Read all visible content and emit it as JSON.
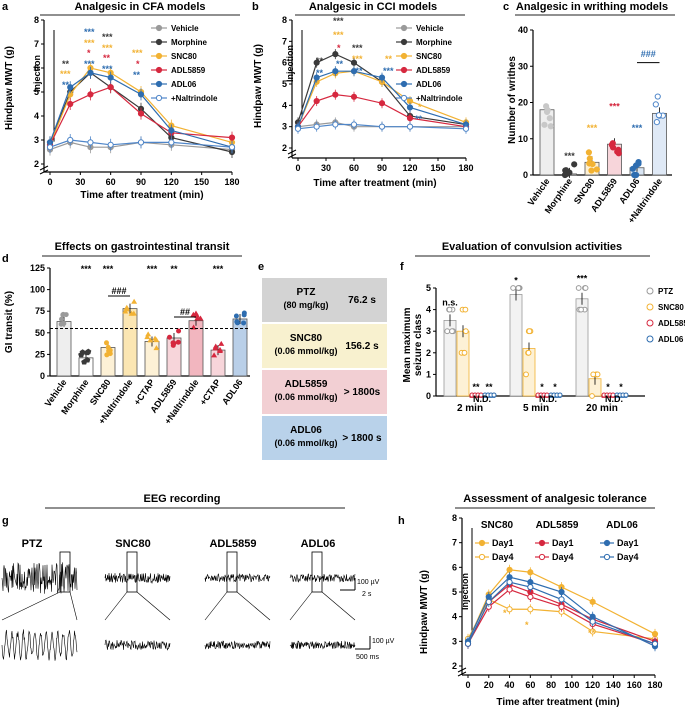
{
  "panels": {
    "a": {
      "letter": "a",
      "title": "Analgesic in CFA models",
      "ylabel": "Hindpaw MWT (g)",
      "xlabel": "Time after treatment (min)",
      "yticks": [
        "2",
        "3",
        "4",
        "5",
        "6",
        "7",
        "8"
      ],
      "xticks": [
        "0",
        "30",
        "60",
        "90",
        "120",
        "150",
        "180"
      ],
      "injection": "Injection",
      "legend": [
        "Vehicle",
        "Morphine",
        "SNC80",
        "ADL5859",
        "ADL06",
        "+Naltrindole"
      ]
    },
    "b": {
      "letter": "b",
      "title": "Analgesic in CCI models",
      "ylabel": "Hindpaw MWT (g)",
      "xlabel": "Time after treatment (min)",
      "yticks": [
        "2",
        "3",
        "4",
        "5",
        "6",
        "7",
        "8"
      ],
      "xticks": [
        "0",
        "30",
        "60",
        "90",
        "120",
        "150",
        "180"
      ],
      "injection": "Injection",
      "legend": [
        "Vehicle",
        "Morphine",
        "SNC80",
        "ADL5859",
        "ADL06",
        "+Naltrindole"
      ]
    },
    "c": {
      "letter": "c",
      "title": "Analgesic in writhing models",
      "ylabel": "Number of writhes",
      "yticks": [
        "0",
        "10",
        "20",
        "30",
        "40"
      ],
      "categories": [
        "Vehicle",
        "Morphine",
        "SNC80",
        "ADL5859",
        "ADL06",
        "+Naltrindole"
      ],
      "sig": [
        "***",
        "***",
        "***",
        "***",
        "###"
      ]
    },
    "d": {
      "letter": "d",
      "title": "Effects on gastrointestinal transit",
      "ylabel": "GI transit (%)",
      "yticks": [
        "0",
        "25",
        "50",
        "75",
        "100",
        "125"
      ],
      "categories": [
        "Vehicle",
        "Morphine",
        "SNC80",
        "+Naltrindole",
        "+CTAP",
        "ADL5859",
        "+Naltrindole",
        "+CTAP",
        "ADL06"
      ],
      "sig": [
        "***",
        "***",
        "***",
        "**",
        "***",
        "###",
        "##"
      ]
    },
    "e": {
      "letter": "e",
      "rows": [
        {
          "name": "PTZ",
          "dose": "(80 mg/kg)",
          "value": "76.2 s"
        },
        {
          "name": "SNC80",
          "dose": "(0.06 mmol/kg)",
          "value": "156.2 s"
        },
        {
          "name": "ADL5859",
          "dose": "(0.06 mmol/kg)",
          "value": "> 1800s"
        },
        {
          "name": "ADL06",
          "dose": "(0.06 mmol/kg)",
          "value": "> 1800 s"
        }
      ]
    },
    "f": {
      "letter": "f",
      "title": "Evaluation of convulsion activities",
      "ylabel": "Mean maximum seizure class",
      "yticks": [
        "0",
        "1",
        "2",
        "3",
        "4",
        "5"
      ],
      "groups": [
        "2 min",
        "5 min",
        "20 min"
      ],
      "legend": [
        "PTZ",
        "SNC80",
        "ADL5859",
        "ADL06"
      ],
      "annotations": [
        "n.s.",
        "**",
        "**",
        "N.D.",
        "*",
        "*",
        "*",
        "N.D.",
        "***",
        "*",
        "*",
        "N.D."
      ]
    },
    "g": {
      "letter": "g",
      "title": "EEG recording",
      "traces": [
        "PTZ",
        "SNC80",
        "ADL5859",
        "ADL06"
      ],
      "scale_top": [
        "100 µV",
        "2 s"
      ],
      "scale_bottom": [
        "100 µV",
        "500 ms"
      ]
    },
    "h": {
      "letter": "h",
      "title": "Assessment of analgesic tolerance",
      "ylabel": "Hindpaw MWT (g)",
      "xlabel": "Time after treatment (min)",
      "yticks": [
        "2",
        "3",
        "4",
        "5",
        "6",
        "7",
        "8"
      ],
      "xticks": [
        "0",
        "20",
        "40",
        "60",
        "80",
        "100",
        "120",
        "140",
        "160",
        "180"
      ],
      "injection": "Injection",
      "groups": [
        "SNC80",
        "ADL5859",
        "ADL06"
      ],
      "legend": [
        "Day1",
        "Day4"
      ]
    }
  },
  "colors": {
    "vehicle": "#9a9a9a",
    "morphine": "#3a3a3a",
    "snc80": "#f2b233",
    "adl5859": "#d6283f",
    "adl06": "#2e6db0",
    "naltrindole": "#4f86c9"
  },
  "chart_data": [
    {
      "type": "line",
      "panel": "a",
      "title": "Analgesic in CFA models",
      "xlabel": "Time after treatment (min)",
      "ylabel": "Hindpaw MWT (g)",
      "x": [
        0,
        20,
        40,
        60,
        90,
        120,
        180
      ],
      "ylim": [
        2,
        8
      ],
      "xlim": [
        0,
        180
      ],
      "series": [
        {
          "name": "Vehicle",
          "values": [
            2.6,
            2.9,
            2.7,
            2.7,
            2.9,
            2.8,
            2.6
          ]
        },
        {
          "name": "Morphine",
          "values": [
            2.9,
            5.0,
            5.8,
            5.2,
            4.3,
            3.1,
            2.5
          ]
        },
        {
          "name": "SNC80",
          "values": [
            2.8,
            4.9,
            6.0,
            5.8,
            5.0,
            3.6,
            2.9
          ]
        },
        {
          "name": "ADL5859",
          "values": [
            2.8,
            4.5,
            4.9,
            5.2,
            4.1,
            3.3,
            3.1
          ]
        },
        {
          "name": "ADL06",
          "values": [
            2.9,
            5.2,
            5.8,
            5.6,
            4.9,
            3.4,
            2.7
          ]
        },
        {
          "name": "+Naltrindole",
          "values": [
            2.7,
            3.0,
            2.9,
            2.8,
            2.9,
            2.9,
            2.7
          ]
        }
      ]
    },
    {
      "type": "line",
      "panel": "b",
      "title": "Analgesic in CCI models",
      "xlabel": "Time after treatment (min)",
      "ylabel": "Hindpaw MWT (g)",
      "x": [
        0,
        20,
        40,
        60,
        90,
        120,
        180
      ],
      "ylim": [
        2,
        8
      ],
      "xlim": [
        0,
        180
      ],
      "series": [
        {
          "name": "Vehicle",
          "values": [
            3.0,
            3.1,
            3.2,
            3.0,
            3.0,
            3.0,
            3.0
          ]
        },
        {
          "name": "Morphine",
          "values": [
            3.2,
            6.0,
            6.4,
            6.0,
            5.1,
            3.5,
            3.1
          ]
        },
        {
          "name": "SNC80",
          "values": [
            3.0,
            5.1,
            5.5,
            5.6,
            5.1,
            4.2,
            3.2
          ]
        },
        {
          "name": "ADL5859",
          "values": [
            3.0,
            4.2,
            4.5,
            4.4,
            4.1,
            3.4,
            3.0
          ]
        },
        {
          "name": "ADL06",
          "values": [
            3.0,
            5.3,
            5.6,
            5.6,
            5.3,
            3.9,
            3.1
          ]
        },
        {
          "name": "+Naltrindole",
          "values": [
            2.9,
            3.0,
            3.1,
            3.1,
            3.0,
            3.0,
            2.9
          ]
        }
      ]
    },
    {
      "type": "bar",
      "panel": "c",
      "title": "Analgesic in writhing models",
      "ylabel": "Number of writhes",
      "ylim": [
        0,
        40
      ],
      "categories": [
        "Vehicle",
        "Morphine",
        "SNC80",
        "ADL5859",
        "ADL06",
        "+Naltrindole"
      ],
      "values": [
        18,
        0.3,
        3.5,
        8.5,
        2,
        17
      ]
    },
    {
      "type": "bar",
      "panel": "d",
      "title": "Effects on gastrointestinal transit",
      "ylabel": "GI transit (%)",
      "ylim": [
        0,
        125
      ],
      "reference_line": 55,
      "categories": [
        "Vehicle",
        "Morphine",
        "SNC80",
        "+Naltrindole",
        "+CTAP",
        "ADL5859",
        "+Naltrindole",
        "+CTAP",
        "ADL06"
      ],
      "values": [
        63,
        21,
        33,
        78,
        40,
        44,
        64,
        30,
        66
      ]
    },
    {
      "type": "bar",
      "panel": "f",
      "title": "Evaluation of convulsion activities",
      "ylabel": "Mean maximum seizure class",
      "ylim": [
        0,
        5
      ],
      "categories": [
        "2 min",
        "5 min",
        "20 min"
      ],
      "series": [
        {
          "name": "PTZ",
          "values": [
            3.5,
            4.7,
            4.5
          ]
        },
        {
          "name": "SNC80",
          "values": [
            3.0,
            2.2,
            0.8
          ]
        },
        {
          "name": "ADL5859",
          "values": [
            0,
            0,
            0
          ]
        },
        {
          "name": "ADL06",
          "values": [
            0,
            0,
            0
          ]
        }
      ]
    },
    {
      "type": "line",
      "panel": "h",
      "title": "Assessment of analgesic tolerance",
      "xlabel": "Time after treatment (min)",
      "ylabel": "Hindpaw MWT (g)",
      "x": [
        0,
        20,
        40,
        60,
        90,
        120,
        180
      ],
      "ylim": [
        2,
        8
      ],
      "xlim": [
        0,
        180
      ],
      "series": [
        {
          "name": "SNC80 Day1",
          "values": [
            3.0,
            4.9,
            5.9,
            5.8,
            5.2,
            4.6,
            3.3
          ]
        },
        {
          "name": "SNC80 Day4",
          "values": [
            3.1,
            4.7,
            4.3,
            4.3,
            4.2,
            3.4,
            3.1
          ]
        },
        {
          "name": "ADL5859 Day1",
          "values": [
            2.9,
            4.6,
            5.3,
            5.0,
            4.5,
            3.9,
            3.0
          ]
        },
        {
          "name": "ADL5859 Day4",
          "values": [
            2.9,
            4.4,
            5.1,
            4.8,
            4.4,
            3.7,
            2.9
          ]
        },
        {
          "name": "ADL06 Day1",
          "values": [
            3.0,
            4.8,
            5.6,
            5.4,
            5.0,
            4.0,
            2.8
          ]
        },
        {
          "name": "ADL06 Day4",
          "values": [
            2.9,
            4.6,
            5.4,
            5.2,
            4.7,
            3.8,
            2.9
          ]
        }
      ]
    }
  ]
}
